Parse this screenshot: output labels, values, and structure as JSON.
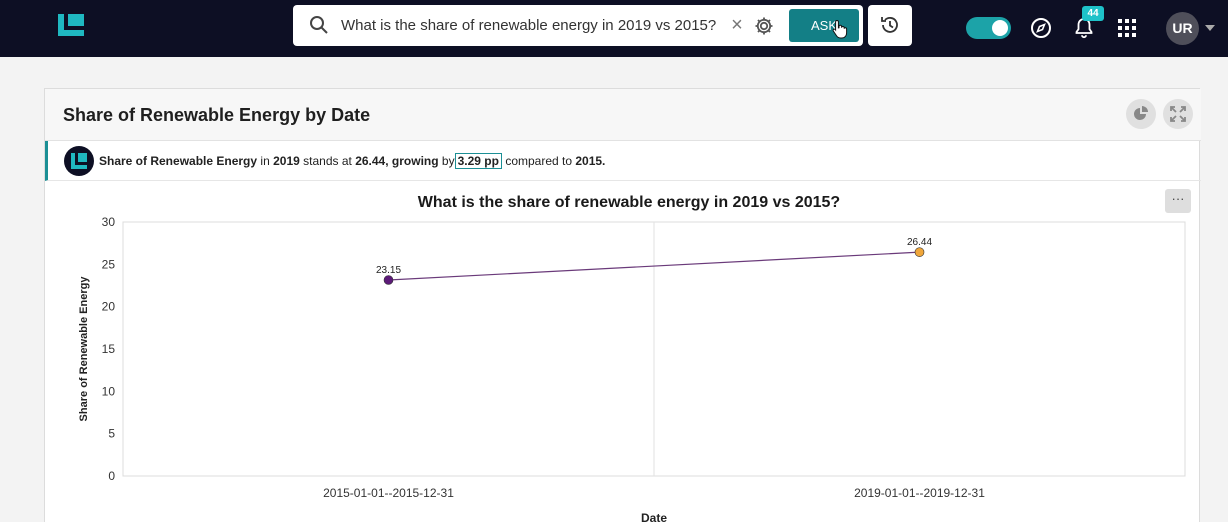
{
  "topbar": {
    "search": {
      "value": "What is the share of renewable energy in 2019 vs 2015?"
    },
    "ask_label": "ASK",
    "notifications_count": "44",
    "avatar_initials": "UR",
    "toggle_on": true
  },
  "card": {
    "title": "Share of Renewable Energy by Date",
    "insight": {
      "metric": "Share of Renewable Energy",
      "t_in": "in",
      "year": "2019",
      "t_stands": "stands at",
      "value": "26.44,",
      "growing": "growing",
      "t_by": "by",
      "delta": "3.29 pp",
      "t_compared": "compared to",
      "base_year": "2015."
    },
    "more_label": "···"
  },
  "chart_data": {
    "type": "line",
    "title": "What is the share of renewable energy in 2019 vs 2015?",
    "xlabel": "Date",
    "ylabel": "Share of Renewable Energy",
    "categories": [
      "2015-01-01--2015-12-31",
      "2019-01-01--2019-12-31"
    ],
    "values": [
      23.15,
      26.44
    ],
    "data_labels": [
      "23.15",
      "26.44"
    ],
    "point_colors": [
      "#5c1a78",
      "#f0a63a"
    ],
    "line_color": "#6a3a7a",
    "ylim": [
      0,
      30
    ],
    "yticks": [
      "0",
      "5",
      "10",
      "15",
      "20",
      "25",
      "30"
    ],
    "grid": true
  }
}
